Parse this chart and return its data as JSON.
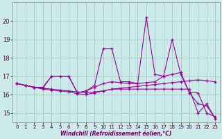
{
  "xlabel": "Windchill (Refroidissement éolien,°C)",
  "bg_color": "#cceae8",
  "grid_color": "#aacccc",
  "line_color": "#990099",
  "hours": [
    0,
    1,
    2,
    3,
    4,
    5,
    6,
    7,
    8,
    9,
    10,
    11,
    12,
    13,
    14,
    15,
    16,
    17,
    18,
    19,
    20,
    21,
    22,
    23
  ],
  "series1": [
    16.6,
    16.5,
    16.4,
    16.35,
    16.3,
    16.25,
    16.2,
    16.15,
    16.1,
    16.15,
    16.2,
    16.3,
    16.35,
    16.4,
    16.45,
    16.5,
    16.55,
    16.6,
    16.65,
    16.7,
    16.75,
    16.8,
    16.75,
    16.7
  ],
  "series2": [
    16.6,
    16.5,
    16.4,
    16.35,
    17.0,
    17.0,
    17.0,
    16.1,
    16.2,
    16.4,
    16.6,
    16.7,
    16.65,
    16.6,
    16.6,
    16.65,
    16.7,
    17.0,
    17.1,
    17.2,
    16.1,
    16.1,
    15.0,
    14.8
  ],
  "series3": [
    16.6,
    16.5,
    16.4,
    16.4,
    17.0,
    17.0,
    17.0,
    16.1,
    16.2,
    16.5,
    18.5,
    18.5,
    16.7,
    16.7,
    16.6,
    20.2,
    17.1,
    17.0,
    19.0,
    17.1,
    16.1,
    15.5,
    15.4,
    14.7
  ],
  "series4": [
    16.6,
    16.5,
    16.4,
    16.3,
    16.25,
    16.2,
    16.15,
    16.05,
    16.0,
    16.1,
    16.2,
    16.3,
    16.3,
    16.3,
    16.3,
    16.3,
    16.3,
    16.3,
    16.3,
    16.3,
    16.3,
    15.0,
    15.5,
    14.7
  ],
  "ylim_min": 14.5,
  "ylim_max": 21.0,
  "yticks": [
    15,
    16,
    17,
    18,
    19,
    20
  ]
}
